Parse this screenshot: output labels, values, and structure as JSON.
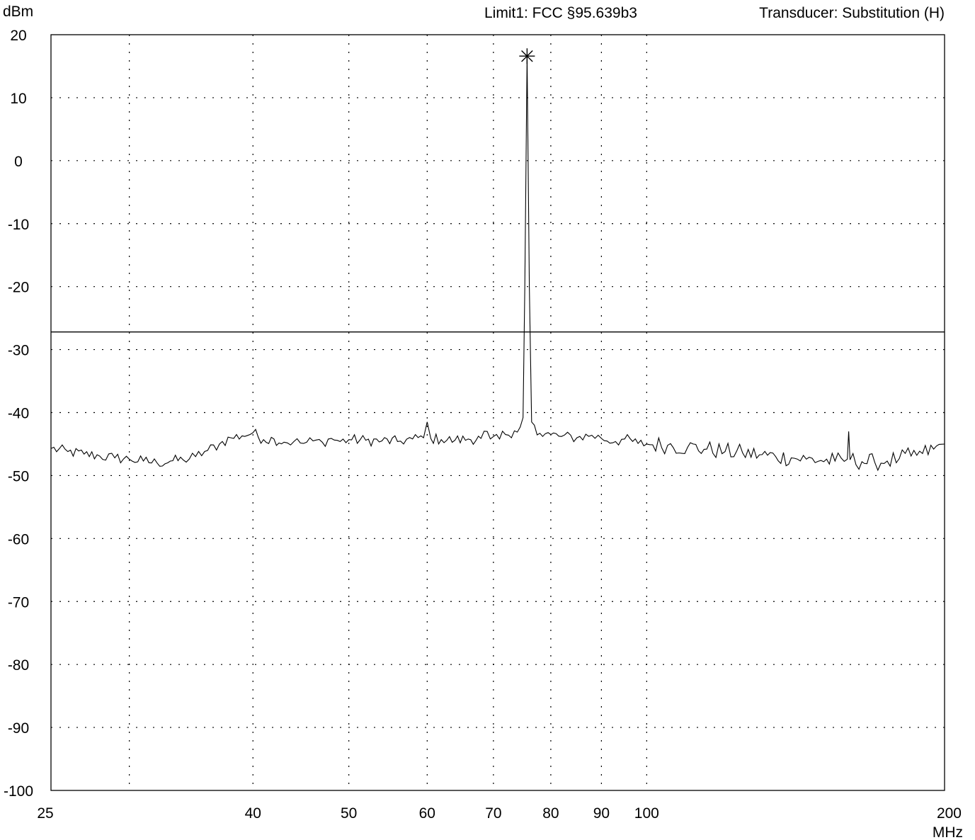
{
  "chart_data": {
    "type": "line",
    "ylabel": "dBm",
    "xlabel": "MHz",
    "header": {
      "limit": "Limit1: FCC §95.639b3",
      "transducer": "Transducer: Substitution (H)"
    },
    "x_scale": "log",
    "xlim": [
      25,
      200
    ],
    "ylim": [
      -100,
      20
    ],
    "x_ticks": [
      25,
      40,
      50,
      60,
      70,
      80,
      90,
      100,
      200
    ],
    "x_tick_labels": [
      "25",
      "40",
      "50",
      "60",
      "70",
      "80",
      "90",
      "100",
      "200"
    ],
    "x_gridlines": [
      30,
      40,
      50,
      60,
      70,
      80,
      90,
      100
    ],
    "y_ticks": [
      20,
      10,
      0,
      -10,
      -20,
      -30,
      -40,
      -50,
      -60,
      -70,
      -80,
      -90,
      -100
    ],
    "y_tick_labels": [
      "20",
      "10",
      "0",
      "-10",
      "-20",
      "-30",
      "-40",
      "-50",
      "-60",
      "-70",
      "-80",
      "-90",
      "-100"
    ],
    "grid": true,
    "limit_line": {
      "y": -27.2
    },
    "peak_marker": {
      "x": 75.7,
      "y": 16.6,
      "symbol": "asterisk"
    },
    "series": [
      {
        "x": [
          25,
          26,
          27,
          28,
          29,
          30,
          31,
          32,
          33,
          34,
          35,
          36,
          37,
          38,
          39,
          40,
          41,
          42,
          43,
          44,
          45,
          46,
          47,
          48,
          49,
          50,
          52,
          54,
          56,
          58,
          59.5,
          60,
          60.5,
          62,
          64,
          66,
          68,
          69,
          69.5,
          70,
          71,
          72,
          73,
          74,
          75,
          75.3,
          75.7,
          76.1,
          76.5,
          77,
          78,
          80,
          82,
          85,
          88,
          90,
          93,
          95,
          98,
          100,
          105,
          110,
          115,
          120,
          125,
          130,
          135,
          140,
          145,
          150,
          155,
          159.5,
          160,
          160.5,
          165,
          170,
          175,
          180,
          185,
          190,
          195,
          200
        ],
        "values": [
          -45.7,
          -46.2,
          -46.6,
          -46.9,
          -47.2,
          -47.4,
          -47.7,
          -48.0,
          -47.7,
          -47.5,
          -47.0,
          -46.0,
          -45.0,
          -44.0,
          -43.7,
          -43.2,
          -44.3,
          -44.2,
          -44.7,
          -44.6,
          -44.9,
          -44.5,
          -44.7,
          -44.1,
          -44.6,
          -44.3,
          -44.4,
          -44.5,
          -44.6,
          -44.2,
          -44.0,
          -41.5,
          -44.1,
          -44.3,
          -44.4,
          -44.2,
          -44.1,
          -43.0,
          -44.2,
          -43.8,
          -44.2,
          -43.5,
          -44.0,
          -43.1,
          -40.8,
          -20.0,
          16.6,
          -20.0,
          -41.5,
          -42.0,
          -43.3,
          -43.5,
          -43.8,
          -44.0,
          -43.6,
          -44.1,
          -44.6,
          -44.2,
          -44.9,
          -45.0,
          -45.2,
          -45.5,
          -45.8,
          -46.2,
          -46.4,
          -46.7,
          -47.0,
          -47.2,
          -47.4,
          -47.6,
          -47.7,
          -47.4,
          -43.0,
          -47.5,
          -47.8,
          -47.9,
          -47.7,
          -47.3,
          -46.9,
          -46.5,
          -45.8,
          -45.0
        ]
      }
    ]
  }
}
